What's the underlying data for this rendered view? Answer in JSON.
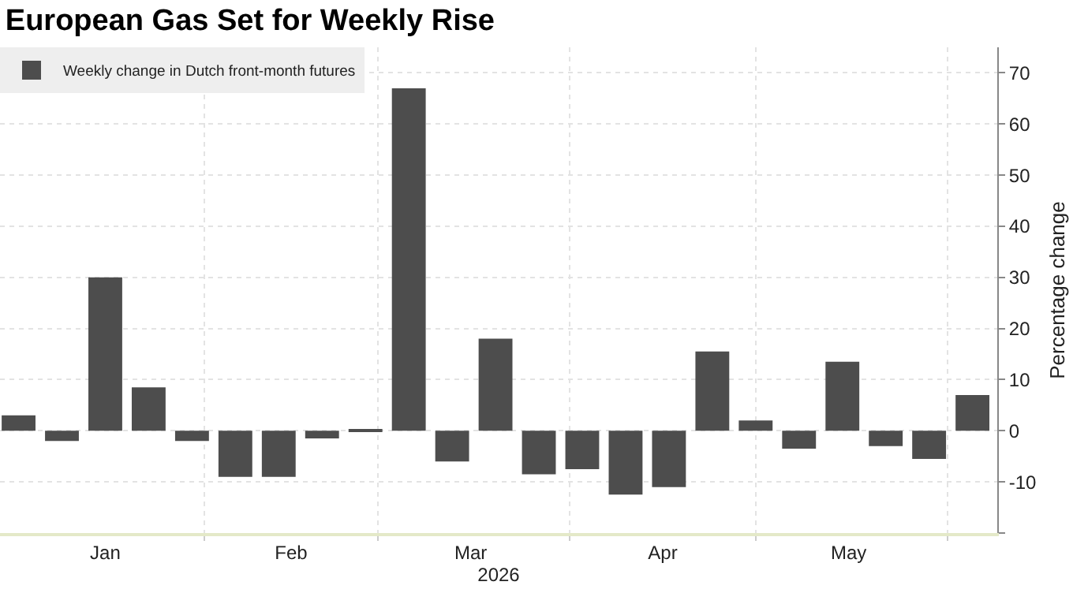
{
  "chart_data": {
    "type": "bar",
    "title": "European Gas Set for Weekly Rise",
    "xlabel": "2026",
    "ylabel": "Percentage change",
    "x": [
      "2026-01-02",
      "2026-01-09",
      "2026-01-16",
      "2026-01-23",
      "2026-01-30",
      "2026-02-06",
      "2026-02-13",
      "2026-02-20",
      "2026-02-27",
      "2026-03-06",
      "2026-03-13",
      "2026-03-20",
      "2026-03-27",
      "2026-04-03",
      "2026-04-10",
      "2026-04-17",
      "2026-04-24",
      "2026-05-01",
      "2026-05-08",
      "2026-05-15",
      "2026-05-22",
      "2026-05-29",
      "2026-06-05"
    ],
    "series": [
      {
        "name": "Weekly change in Dutch front-month futures",
        "color": "#4d4d4d",
        "values": [
          3,
          -2,
          30,
          8.5,
          -2,
          -9,
          -9,
          -1.5,
          0.3,
          67,
          -6,
          18,
          -8.5,
          -7.5,
          -12.5,
          -11,
          15.5,
          2,
          -3.5,
          13.5,
          -3,
          -5.5,
          7
        ]
      }
    ],
    "xlim": [
      "2025-12-30",
      "2026-06-09"
    ],
    "ylim": [
      -20,
      75
    ],
    "xticks": [
      {
        "value": "2026-01-16",
        "label": "Jan"
      },
      {
        "value": "2026-02-01",
        "label": null
      },
      {
        "value": "2026-02-15",
        "label": "Feb"
      },
      {
        "value": "2026-03-01",
        "label": null
      },
      {
        "value": "2026-03-16",
        "label": "Mar"
      },
      {
        "value": "2026-04-01",
        "label": null
      },
      {
        "value": "2026-04-16",
        "label": "Apr"
      },
      {
        "value": "2026-05-01",
        "label": null
      },
      {
        "value": "2026-05-16",
        "label": "May"
      },
      {
        "value": "2026-06-01",
        "label": null
      }
    ],
    "yticks": [
      {
        "value": -20,
        "label": null
      },
      -10,
      0,
      10,
      20,
      30,
      40,
      50,
      60,
      70
    ],
    "grid": true,
    "legend": "top left"
  }
}
